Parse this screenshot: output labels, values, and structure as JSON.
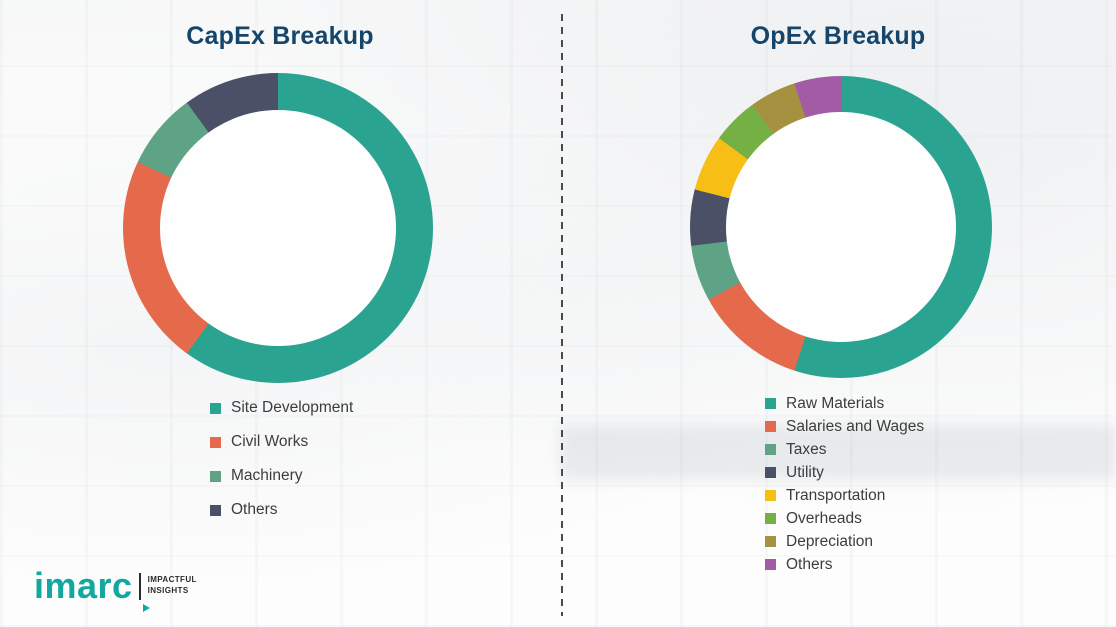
{
  "chart_data": [
    {
      "type": "pie",
      "variant": "donut",
      "title": "CapEx Breakup",
      "legend_position": "bottom",
      "hole_ratio": 0.76,
      "segments": [
        {
          "label": "Site Development",
          "value": 60,
          "color": "#2AA491"
        },
        {
          "label": "Civil Works",
          "value": 22,
          "color": "#E56A4B"
        },
        {
          "label": "Machinery",
          "value": 8,
          "color": "#5EA385"
        },
        {
          "label": "Others",
          "value": 10,
          "color": "#4A5167"
        }
      ]
    },
    {
      "type": "pie",
      "variant": "donut",
      "title": "OpEx Breakup",
      "legend_position": "bottom",
      "hole_ratio": 0.76,
      "segments": [
        {
          "label": "Raw Materials",
          "value": 55,
          "color": "#2AA491"
        },
        {
          "label": "Salaries and Wages",
          "value": 12,
          "color": "#E56A4B"
        },
        {
          "label": "Taxes",
          "value": 6,
          "color": "#5EA385"
        },
        {
          "label": "Utility",
          "value": 6,
          "color": "#4A5167"
        },
        {
          "label": "Transportation",
          "value": 6,
          "color": "#F7BE16"
        },
        {
          "label": "Overheads",
          "value": 5,
          "color": "#74B043"
        },
        {
          "label": "Depreciation",
          "value": 5,
          "color": "#A59140"
        },
        {
          "label": "Others",
          "value": 5,
          "color": "#A35BA5"
        }
      ]
    }
  ],
  "logo": {
    "brand": "imarc",
    "tagline_line1": "IMPACTFUL",
    "tagline_line2": "INSIGHTS",
    "brand_color": "#12A7A1"
  },
  "colors": {
    "title": "#15456B",
    "legend_text": "#3d3d3d",
    "divider": "#4a4a4a"
  }
}
